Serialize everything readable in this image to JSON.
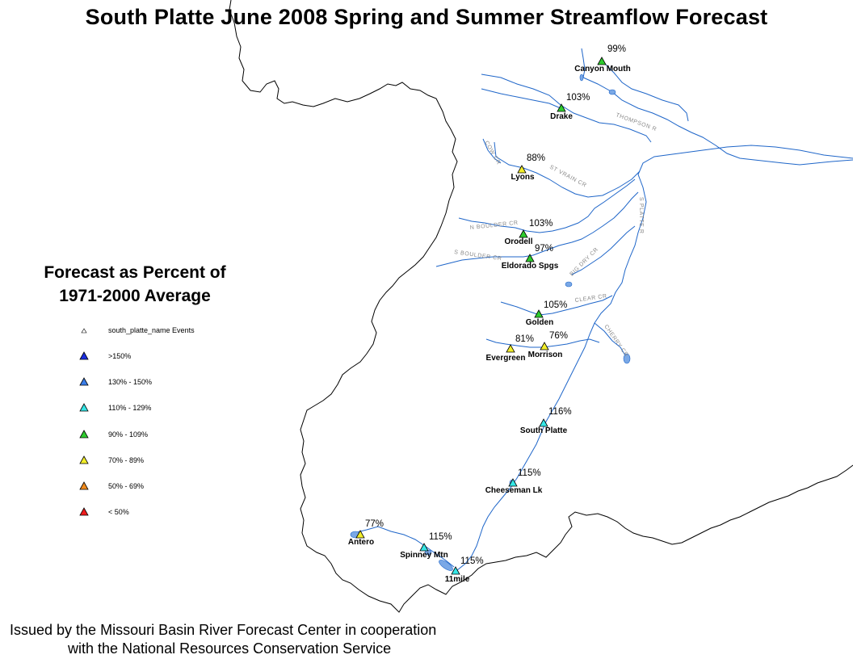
{
  "title": "South Platte June 2008 Spring and Summer Streamflow Forecast",
  "legend": {
    "title_line1": "Forecast as Percent of",
    "title_line2": "1971-2000 Average",
    "items": [
      {
        "label": "south_platte_name  Events",
        "color": "#ffffff"
      },
      {
        "label": ">150%",
        "color": "#1b2fe0"
      },
      {
        "label": "130% - 150%",
        "color": "#3a7de8"
      },
      {
        "label": "110% - 129%",
        "color": "#35e6e6"
      },
      {
        "label": "90% - 109%",
        "color": "#2ecc2e"
      },
      {
        "label": "70% - 89%",
        "color": "#f2ee2a"
      },
      {
        "label": "50% - 69%",
        "color": "#f08a1c"
      },
      {
        "label": "< 50%",
        "color": "#ee1c1c"
      }
    ]
  },
  "stations": [
    {
      "name": "Canyon Mouth",
      "pct": "99%",
      "color": "#2ecc2e"
    },
    {
      "name": "Drake",
      "pct": "103%",
      "color": "#2ecc2e"
    },
    {
      "name": "Lyons",
      "pct": "88%",
      "color": "#f2ee2a"
    },
    {
      "name": "Orodell",
      "pct": "103%",
      "color": "#2ecc2e"
    },
    {
      "name": "Eldorado Spgs",
      "pct": "97%",
      "color": "#2ecc2e"
    },
    {
      "name": "Golden",
      "pct": "105%",
      "color": "#2ecc2e"
    },
    {
      "name": "Evergreen",
      "pct": "81%",
      "color": "#f2ee2a"
    },
    {
      "name": "Morrison",
      "pct": "76%",
      "color": "#f2ee2a"
    },
    {
      "name": "South Platte",
      "pct": "116%",
      "color": "#35e6e6"
    },
    {
      "name": "Cheeseman Lk",
      "pct": "115%",
      "color": "#35e6e6"
    },
    {
      "name": "Antero",
      "pct": "77%",
      "color": "#f2ee2a"
    },
    {
      "name": "Spinney Mtn",
      "pct": "115%",
      "color": "#35e6e6"
    },
    {
      "name": "11mile",
      "pct": "115%",
      "color": "#35e6e6"
    }
  ],
  "rivers": {
    "thompson": "THOMPSON R",
    "cow_cr": "COW CR",
    "st_vrain": "ST VRAIN CR",
    "s_platte": "S PLATTE R",
    "n_boulder": "N BOULDER CR",
    "s_boulder": "S BOULDER CR",
    "big_dry": "BIG DRY CR",
    "clear_cr": "CLEAR CR",
    "cherry_cr": "CHERRY CR"
  },
  "footer": {
    "line1": "Issued by the Missouri Basin River Forecast Center in cooperation",
    "line2": "with the National Resources Conservation Service"
  },
  "colors": {
    "river": "#1f66c9",
    "lake": "#7aa8e6",
    "boundary": "#000000"
  }
}
